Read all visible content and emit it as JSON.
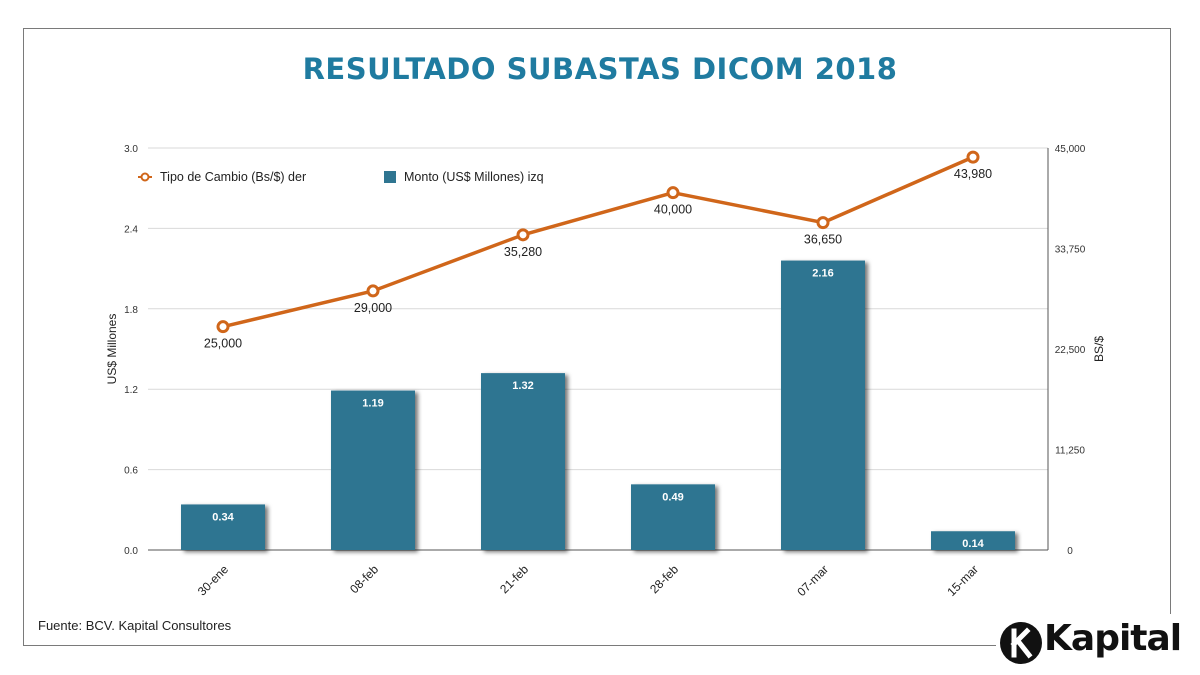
{
  "title": "RESULTADO SUBASTAS DICOM 2018",
  "source": "Fuente: BCV. Kapital Consultores",
  "logo_text": "Kapital",
  "colors": {
    "bar": "#2f7591",
    "line": "#d0661a",
    "title": "#1f7ba0"
  },
  "chart_data": {
    "type": "bar",
    "categories": [
      "30-ene",
      "08-feb",
      "21-feb",
      "28-feb",
      "07-mar",
      "15-mar"
    ],
    "series": [
      {
        "name": "Monto (US$ Millones) izq",
        "type": "bar",
        "axis": "left",
        "values": [
          0.34,
          1.19,
          1.32,
          0.49,
          2.16,
          0.14
        ],
        "labels": [
          "0.34",
          "1.19",
          "1.32",
          "0.49",
          "2.16",
          "0.14"
        ]
      },
      {
        "name": "Tipo de Cambio (Bs/$) der",
        "type": "line",
        "axis": "right",
        "values": [
          25000,
          29000,
          35280,
          40000,
          36650,
          43980
        ],
        "labels": [
          "25,000",
          "29,000",
          "35,280",
          "40,000",
          "36,650",
          "43,980"
        ]
      }
    ],
    "ylabel": "US$ Millones",
    "y2label": "BS/$",
    "ylim": [
      0,
      3.0
    ],
    "y2lim": [
      0,
      45000
    ],
    "yticks": [
      "0.0",
      "0.6",
      "1.2",
      "1.8",
      "2.4",
      "3.0"
    ],
    "y2ticks": [
      "0",
      "11,250",
      "22,500",
      "33,750",
      "45,000"
    ],
    "grid": true,
    "legend_position": "top-left"
  }
}
